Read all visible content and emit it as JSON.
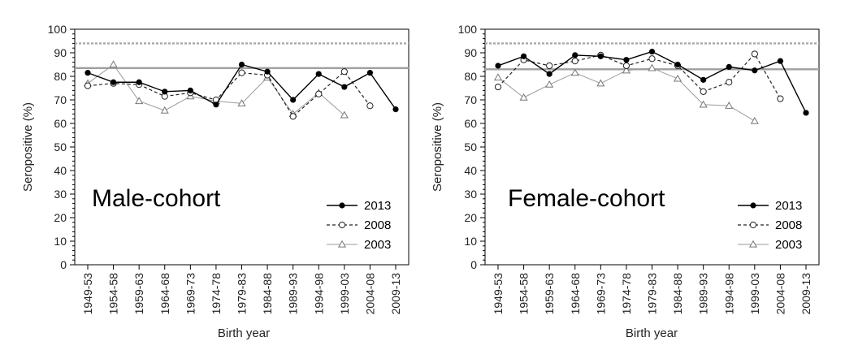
{
  "chart_data": [
    {
      "type": "line",
      "title": "Male-cohort",
      "xlabel": "Birth year",
      "ylabel": "Seropositive (%)",
      "ylim": [
        0,
        100
      ],
      "yticks": [
        "0",
        "10",
        "20",
        "30",
        "40",
        "50",
        "60",
        "70",
        "80",
        "90",
        "100"
      ],
      "categories": [
        "1949-53",
        "1954-58",
        "1959-63",
        "1964-68",
        "1969-73",
        "1974-78",
        "1979-83",
        "1984-88",
        "1989-93",
        "1994-98",
        "1999-03",
        "2004-08",
        "2009-13"
      ],
      "reference_lines": [
        94,
        83.5
      ],
      "legend_position": "bottom-right",
      "series": [
        {
          "name": "2013",
          "values": [
            81.5,
            77.5,
            77.5,
            73.5,
            74,
            68,
            85,
            82,
            70,
            81,
            75.5,
            81.5,
            66
          ]
        },
        {
          "name": "2008",
          "values": [
            76,
            77,
            76.5,
            71.5,
            73,
            70,
            81.5,
            80.5,
            63,
            72.5,
            82,
            67.5,
            null
          ]
        },
        {
          "name": "2003",
          "values": [
            77,
            85,
            69.5,
            65.5,
            71.5,
            69.5,
            68.5,
            79.5,
            64,
            73,
            63.5,
            null,
            null
          ]
        }
      ]
    },
    {
      "type": "line",
      "title": "Female-cohort",
      "xlabel": "Birth year",
      "ylabel": "Seropositive (%)",
      "ylim": [
        0,
        100
      ],
      "yticks": [
        "0",
        "10",
        "20",
        "30",
        "40",
        "50",
        "60",
        "70",
        "80",
        "90",
        "100"
      ],
      "categories": [
        "1949-53",
        "1954-58",
        "1959-63",
        "1964-68",
        "1969-73",
        "1974-78",
        "1979-83",
        "1984-88",
        "1989-93",
        "1994-98",
        "1999-03",
        "2004-08",
        "2009-13"
      ],
      "reference_lines": [
        94,
        83
      ],
      "legend_position": "bottom-right",
      "series": [
        {
          "name": "2013",
          "values": [
            84.5,
            88.5,
            81,
            89,
            88.5,
            87,
            90.5,
            85,
            78.5,
            84,
            82.5,
            86.5,
            64.5
          ]
        },
        {
          "name": "2008",
          "values": [
            75.5,
            87,
            84.5,
            86.5,
            89,
            84.5,
            87.5,
            84.5,
            73.5,
            77.5,
            89.5,
            70.5,
            null
          ]
        },
        {
          "name": "2003",
          "values": [
            79.5,
            71,
            76.5,
            81.5,
            77,
            82.5,
            83.5,
            79,
            68,
            67.5,
            61,
            null,
            null
          ]
        }
      ]
    }
  ]
}
